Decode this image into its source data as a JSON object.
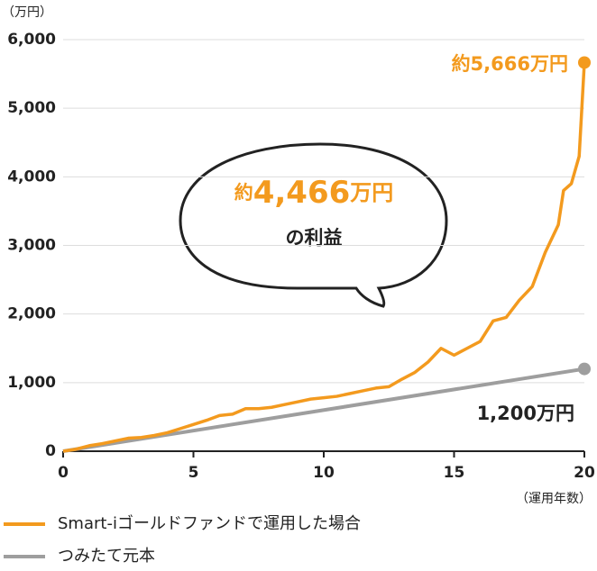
{
  "chart_data": {
    "type": "line",
    "y_unit": "（万円）",
    "x_label": "（運用年数）",
    "xlim": [
      0,
      20
    ],
    "xticks": [
      0,
      5,
      10,
      15,
      20
    ],
    "ylim": [
      0,
      6000
    ],
    "yticks": [
      0,
      {
        "value": 1000,
        "label": "1,000"
      },
      {
        "value": 2000,
        "label": "2,000"
      },
      {
        "value": 3000,
        "label": "3,000"
      },
      {
        "value": 4000,
        "label": "4,000"
      },
      {
        "value": 5000,
        "label": "5,000"
      },
      {
        "value": 6000,
        "label": "6,000"
      }
    ],
    "grid": true,
    "series": [
      {
        "name": "Smart-iゴールドファンドで運用した場合",
        "color": "#f39a1e",
        "x": [
          0,
          0.5,
          1,
          1.5,
          2,
          2.5,
          3,
          3.5,
          4,
          4.5,
          5,
          5.5,
          6,
          6.5,
          7,
          7.5,
          8,
          8.5,
          9,
          9.5,
          10,
          10.5,
          11,
          11.5,
          12,
          12.5,
          13,
          13.5,
          14,
          14.5,
          15,
          15.5,
          16,
          16.5,
          17,
          17.5,
          18,
          18.5,
          19,
          19.2,
          19.5,
          19.8,
          20
        ],
        "values": [
          0,
          30,
          80,
          110,
          150,
          190,
          200,
          230,
          270,
          330,
          390,
          450,
          520,
          540,
          620,
          620,
          640,
          680,
          720,
          760,
          780,
          800,
          840,
          880,
          920,
          940,
          1050,
          1150,
          1300,
          1500,
          1400,
          1500,
          1600,
          1900,
          1950,
          2200,
          2400,
          2900,
          3300,
          3800,
          3900,
          4300,
          5666
        ]
      },
      {
        "name": "つみたて元本",
        "color": "#9e9e9e",
        "x": [
          0,
          20
        ],
        "values": [
          0,
          1200
        ]
      }
    ],
    "end_label_1": "約5,666万円",
    "end_label_2": "1,200万円",
    "profit_prefix": "約",
    "profit_value": "4,466",
    "profit_unit": "万円",
    "profit_caption": "の利益"
  }
}
